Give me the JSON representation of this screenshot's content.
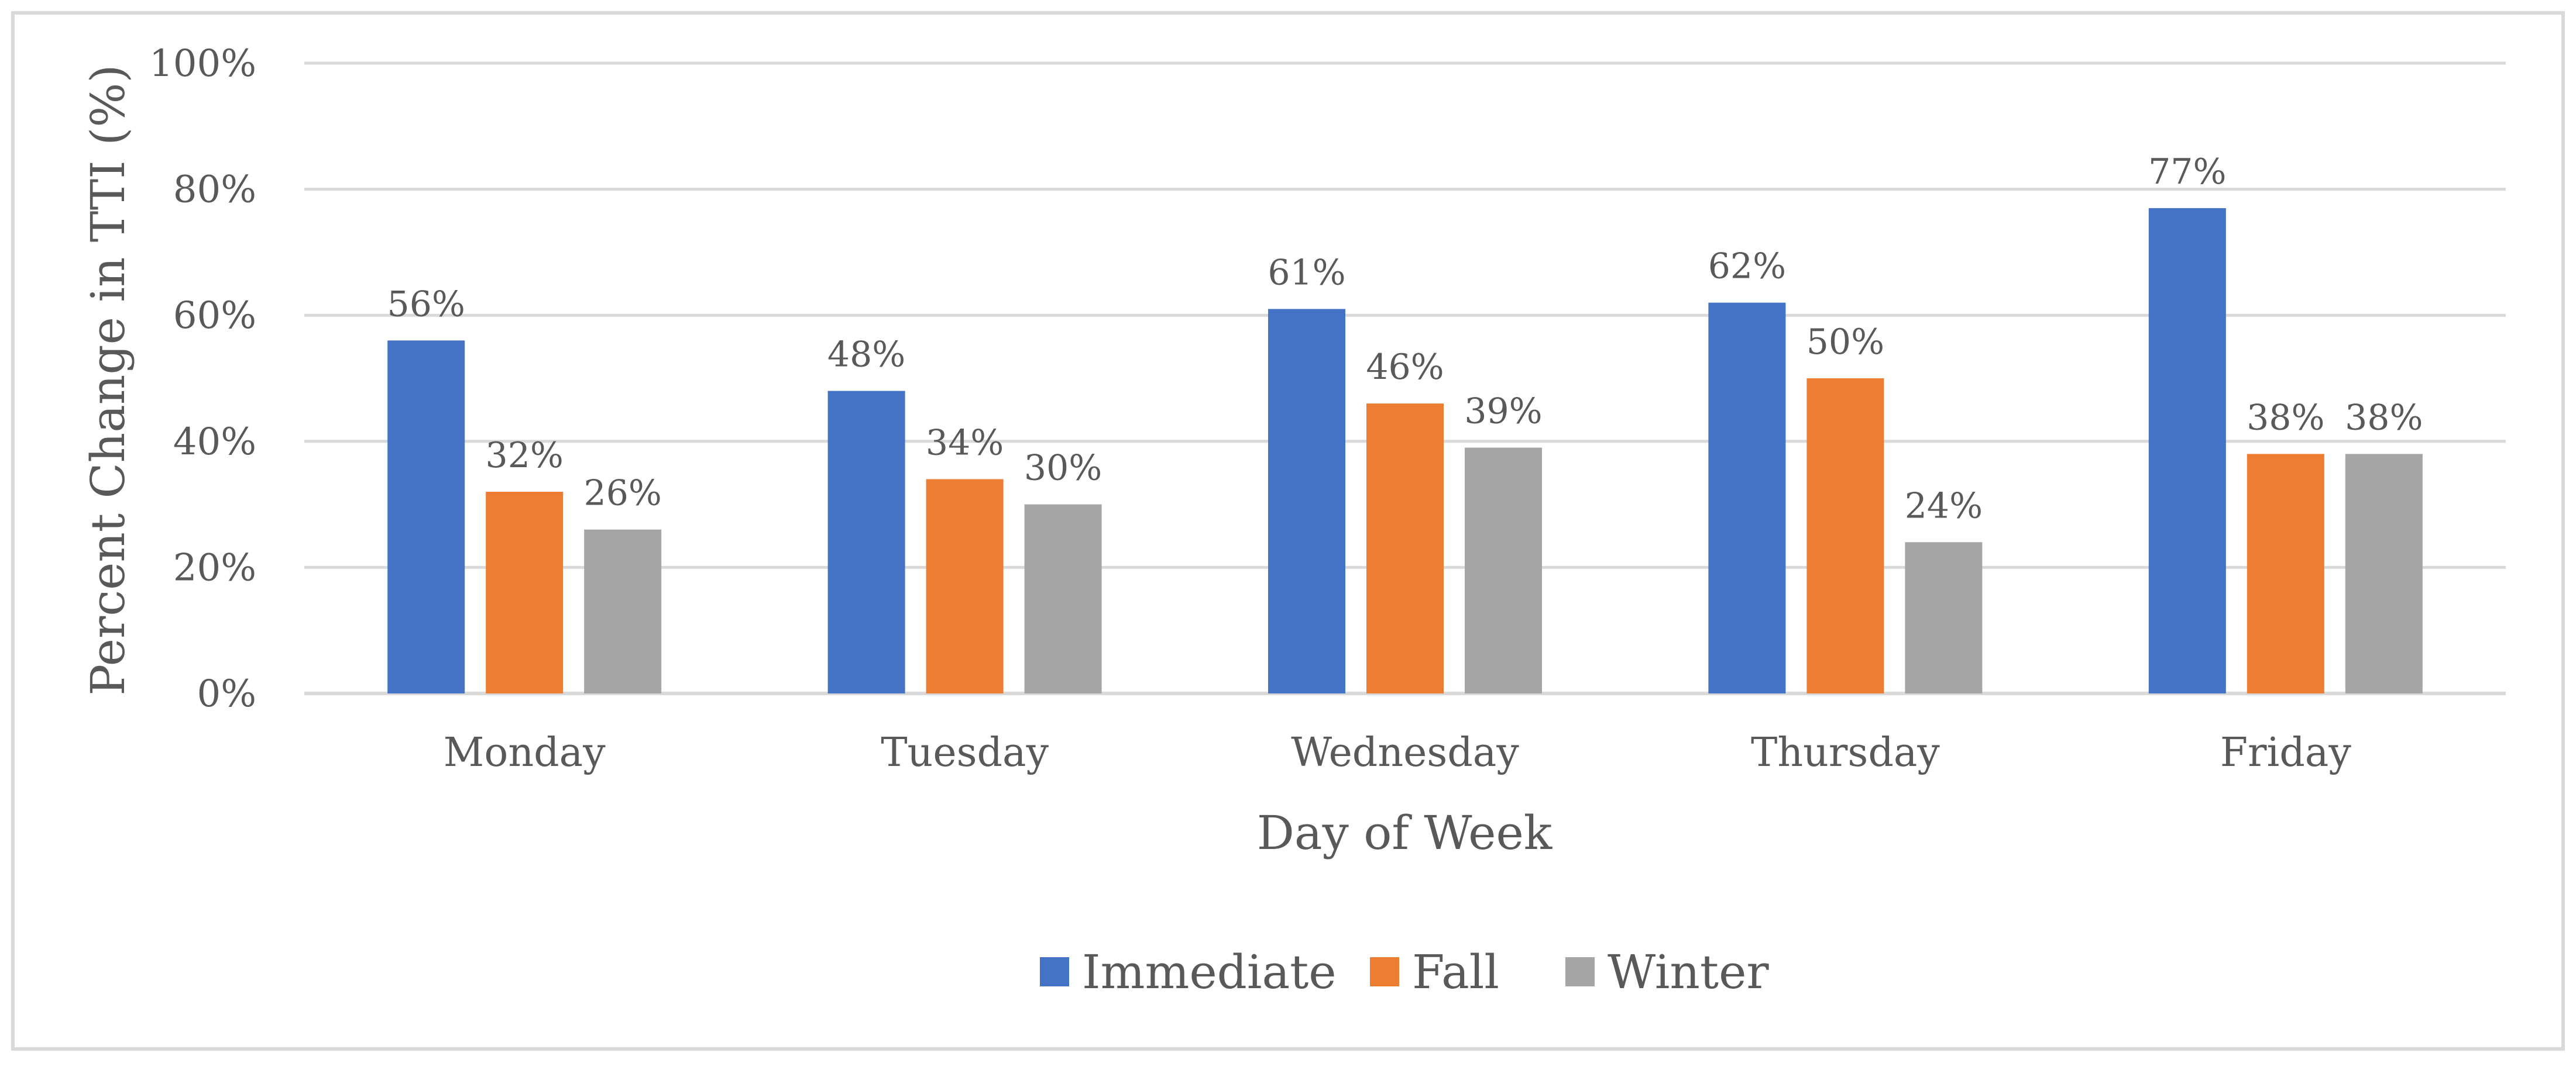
{
  "chart_data": {
    "type": "bar",
    "title": "",
    "xlabel": "Day of Week",
    "ylabel": "Percent Change in TTI  (%)",
    "categories": [
      "Monday",
      "Tuesday",
      "Wednesday",
      "Thursday",
      "Friday"
    ],
    "series": [
      {
        "name": "Immediate",
        "color": "#4472c4",
        "values": [
          56,
          48,
          61,
          62,
          77
        ],
        "labels": [
          "56%",
          "48%",
          "61%",
          "62%",
          "77%"
        ]
      },
      {
        "name": "Fall",
        "color": "#ed7d31",
        "values": [
          32,
          34,
          46,
          50,
          38
        ],
        "labels": [
          "32%",
          "34%",
          "46%",
          "50%",
          "38%"
        ]
      },
      {
        "name": "Winter",
        "color": "#a5a5a5",
        "values": [
          26,
          30,
          39,
          24,
          38
        ],
        "labels": [
          "26%",
          "30%",
          "39%",
          "24%",
          "38%"
        ]
      }
    ],
    "ylim": [
      0,
      100
    ],
    "yticks": [
      0,
      20,
      40,
      60,
      80,
      100
    ],
    "ytick_labels": [
      "0%",
      "20%",
      "40%",
      "60%",
      "80%",
      "100%"
    ],
    "grid": true,
    "legend_position": "bottom-center"
  }
}
